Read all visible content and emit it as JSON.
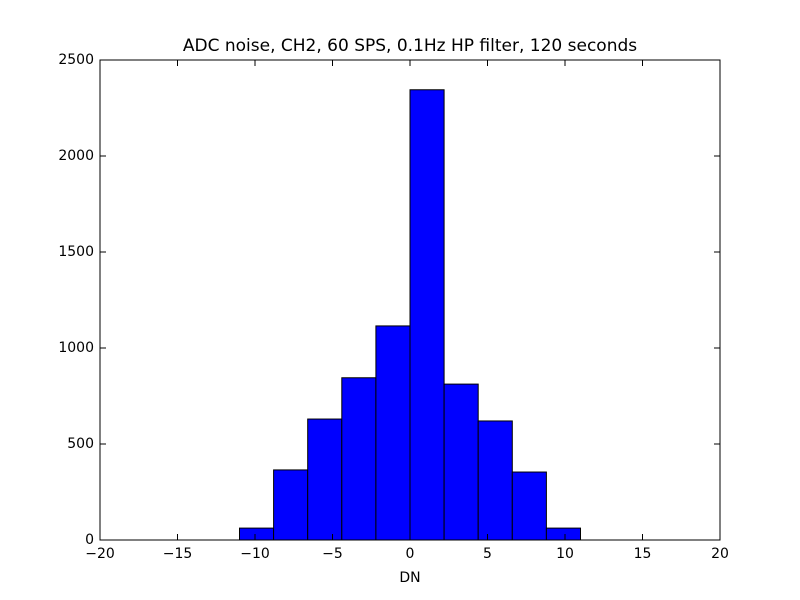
{
  "chart_data": {
    "type": "histogram",
    "title": "ADC noise, CH2, 60 SPS, 0.1Hz HP filter, 120 seconds",
    "xlabel": "DN",
    "bins": [
      -11,
      -8.8,
      -6.6,
      -4.4,
      -2.2,
      0,
      2.2,
      4.4,
      6.6,
      8.8,
      11
    ],
    "values": [
      62,
      365,
      630,
      845,
      1115,
      2345,
      812,
      620,
      354,
      62
    ],
    "color": "#0000ff",
    "xlim": [
      -20,
      20
    ],
    "xticks": [
      {
        "value": -20,
        "label": "−20"
      },
      {
        "value": -15,
        "label": "−15"
      },
      {
        "value": -10,
        "label": "−10"
      },
      {
        "value": -5,
        "label": "−5"
      },
      0,
      5,
      10,
      15,
      20
    ],
    "ylim": [
      0,
      2500
    ],
    "yticks": [
      0,
      500,
      1000,
      1500,
      2000,
      2500
    ]
  }
}
